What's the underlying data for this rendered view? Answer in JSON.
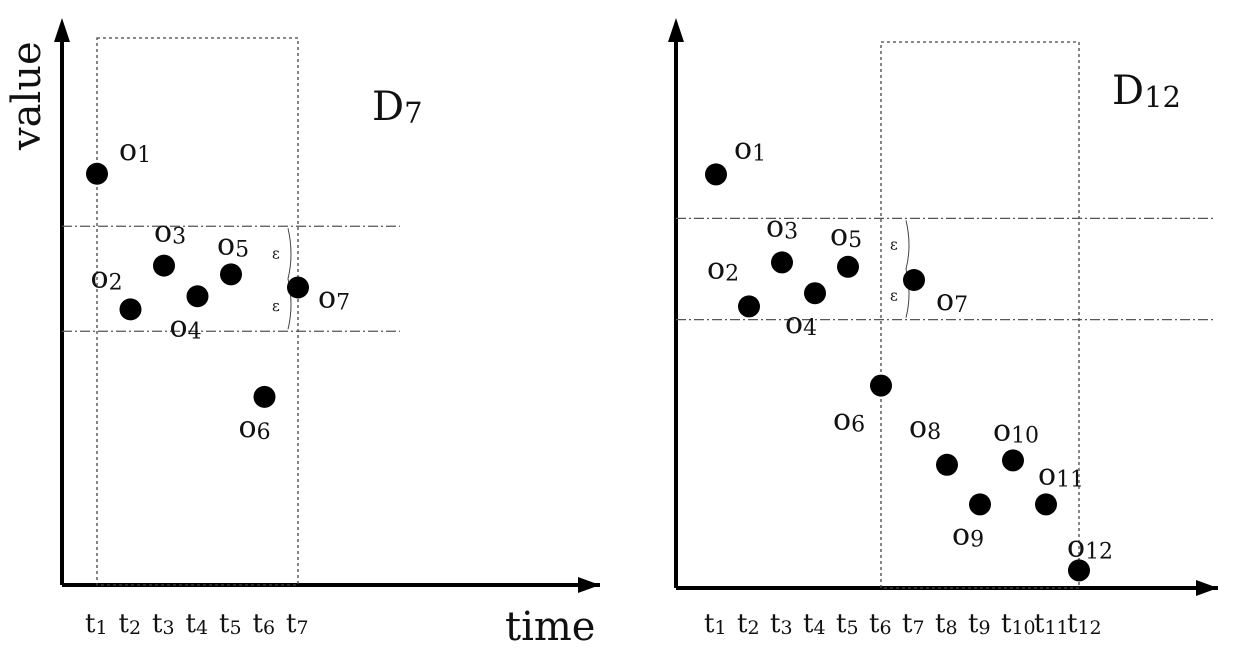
{
  "chart_data": [
    {
      "type": "scatter",
      "title": "D7",
      "xlabel": "time",
      "ylabel": "value",
      "x_ticks": [
        "t1",
        "t2",
        "t3",
        "t4",
        "t5",
        "t6",
        "t7"
      ],
      "x": [
        1,
        2,
        3,
        4,
        5,
        6,
        7
      ],
      "values": [
        9.4,
        6.3,
        7.3,
        6.6,
        7.1,
        4.3,
        6.8
      ],
      "point_labels": [
        "o1",
        "o2",
        "o3",
        "o4",
        "o5",
        "o6",
        "o7"
      ],
      "xlim": [
        0,
        10
      ],
      "ylim": [
        0,
        12
      ],
      "band": [
        5.8,
        8.2
      ],
      "window": [
        1,
        7
      ],
      "band_marks": [
        "ε",
        "ε"
      ],
      "grid": false
    },
    {
      "type": "scatter",
      "title": "D12",
      "xlabel": "",
      "ylabel": "",
      "x_ticks": [
        "t1",
        "t2",
        "t3",
        "t4",
        "t5",
        "t6",
        "t7",
        "t8",
        "t9",
        "t10",
        "t11",
        "t12"
      ],
      "x": [
        1,
        2,
        3,
        4,
        5,
        6,
        7,
        8,
        9,
        10,
        11,
        12
      ],
      "values": [
        9.4,
        6.4,
        7.4,
        6.7,
        7.3,
        4.6,
        7.0,
        2.8,
        1.9,
        2.9,
        1.9,
        0.4
      ],
      "point_labels": [
        "o1",
        "o2",
        "o3",
        "o4",
        "o5",
        "o6",
        "o7",
        "o8",
        "o9",
        "o10",
        "o11",
        "o12"
      ],
      "xlim": [
        0,
        15
      ],
      "ylim": [
        0,
        12
      ],
      "band": [
        6.1,
        8.4
      ],
      "window": [
        6,
        12
      ],
      "band_marks": [
        "ε",
        "ε"
      ],
      "grid": false
    }
  ]
}
